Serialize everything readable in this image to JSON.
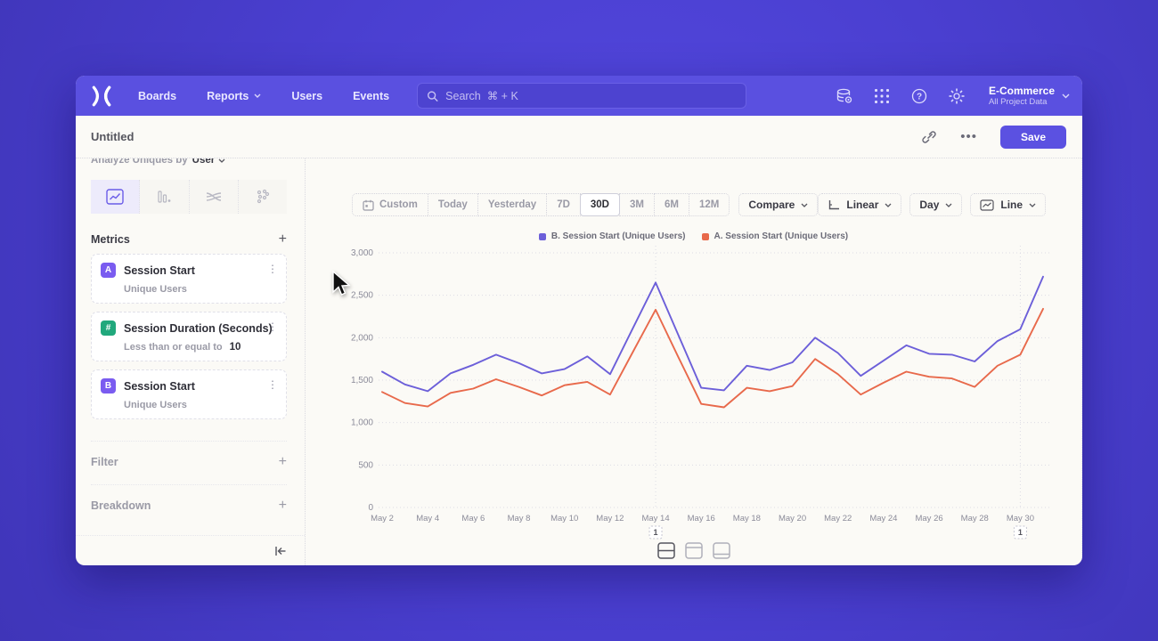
{
  "nav": {
    "items": [
      {
        "label": "Boards",
        "chevron": false
      },
      {
        "label": "Reports",
        "chevron": true
      },
      {
        "label": "Users",
        "chevron": false
      },
      {
        "label": "Events",
        "chevron": false
      }
    ],
    "search_placeholder": "Search  ⌘ + K",
    "project": {
      "name": "E-Commerce",
      "subtitle": "All Project Data"
    }
  },
  "titlebar": {
    "title": "Untitled",
    "save_label": "Save"
  },
  "sidebar": {
    "analyze_prefix": "Analyze Uniques by",
    "analyze_value": "User",
    "metrics_header": "Metrics",
    "add_label": "+",
    "metrics": [
      {
        "badge": "A",
        "badge_color": "#7a5cf0",
        "title": "Session Start",
        "subtitle": "Unique Users"
      },
      {
        "badge": "#",
        "badge_color": "#21a87c",
        "title": "Session Duration (Seconds)",
        "subtitle": "Less than or equal to",
        "value": "10"
      },
      {
        "badge": "B",
        "badge_color": "#7a5cf0",
        "title": "Session Start",
        "subtitle": "Unique Users"
      }
    ],
    "sections": [
      {
        "label": "Filter"
      },
      {
        "label": "Breakdown"
      }
    ]
  },
  "controls": {
    "ranges": [
      "Custom",
      "Today",
      "Yesterday",
      "7D",
      "30D",
      "3M",
      "6M",
      "12M"
    ],
    "selected_range": "30D",
    "compare_label": "Compare",
    "scale_label": "Linear",
    "interval_label": "Day",
    "chart_type_label": "Line"
  },
  "chart_data": {
    "type": "line",
    "title": "",
    "x": [
      "May 2",
      "May 3",
      "May 4",
      "May 5",
      "May 6",
      "May 7",
      "May 8",
      "May 9",
      "May 10",
      "May 11",
      "May 12",
      "May 13",
      "May 14",
      "May 15",
      "May 16",
      "May 17",
      "May 18",
      "May 19",
      "May 20",
      "May 21",
      "May 22",
      "May 23",
      "May 24",
      "May 25",
      "May 26",
      "May 27",
      "May 28",
      "May 29",
      "May 30",
      "May 31"
    ],
    "x_label_every": 2,
    "series": [
      {
        "name": "B. Session Start (Unique Users)",
        "color": "#6c5fd9",
        "values": [
          1600,
          1450,
          1370,
          1580,
          1680,
          1800,
          1700,
          1580,
          1630,
          1780,
          1570,
          2110,
          2650,
          2030,
          1410,
          1380,
          1670,
          1620,
          1710,
          2000,
          1820,
          1550,
          1730,
          1910,
          1810,
          1800,
          1720,
          1960,
          2100,
          2720
        ]
      },
      {
        "name": "A. Session Start (Unique Users)",
        "color": "#e8694b",
        "values": [
          1360,
          1230,
          1190,
          1350,
          1400,
          1510,
          1420,
          1320,
          1440,
          1480,
          1330,
          1830,
          2330,
          1770,
          1220,
          1180,
          1410,
          1370,
          1430,
          1750,
          1570,
          1330,
          1470,
          1600,
          1540,
          1520,
          1420,
          1670,
          1800,
          2340
        ]
      }
    ],
    "ylim": [
      0,
      3000
    ],
    "y_ticks": [
      {
        "label": "0",
        "value": 0
      },
      {
        "label": "500",
        "value": 500
      },
      {
        "label": "1,000",
        "value": 1000
      },
      {
        "label": "1,500",
        "value": 1500
      },
      {
        "label": "2,000",
        "value": 2000
      },
      {
        "label": "2,500",
        "value": 2500
      },
      {
        "label": "3,000",
        "value": 3000
      }
    ],
    "grid": "dotted-horizontal",
    "legend_position": "top-center",
    "annotations": [
      {
        "index": 12,
        "x": "May 14",
        "label": "1"
      },
      {
        "index": 28,
        "x": "May 30",
        "label": "1"
      }
    ]
  }
}
